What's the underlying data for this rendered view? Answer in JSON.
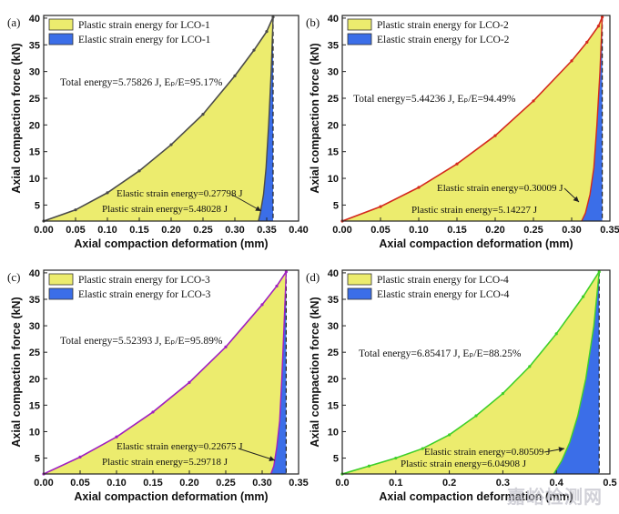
{
  "panels": [
    {
      "tag": "(a)",
      "legend": [
        "Plastic strain energy for LCO-1",
        "Elastic strain energy for LCO-1"
      ],
      "total_note": "Total energy=5.75826 J, Eₚ/E=95.17%",
      "elastic_note": "Elastic strain energy=0.27798 J",
      "plastic_note": "Plastic strain energy=5.48028 J",
      "xlabel": "Axial compaction deformation (mm)",
      "ylabel": "Axial compaction force (kN)",
      "xticks": [
        "0.00",
        "0.05",
        "0.10",
        "0.15",
        "0.20",
        "0.25",
        "0.30",
        "0.35",
        "0.40"
      ],
      "yticks": [
        "5",
        "10",
        "15",
        "20",
        "25",
        "30",
        "35",
        "40"
      ],
      "colors": {
        "line": "#4a4a4a",
        "plastic": "#ecec6e",
        "elastic": "#3b6ee8"
      }
    },
    {
      "tag": "(b)",
      "legend": [
        "Plastic strain energy for LCO-2",
        "Elastic strain energy for LCO-2"
      ],
      "total_note": "Total energy=5.44236 J, Eₚ/E=94.49%",
      "elastic_note": "Elastic strain energy=0.30009 J",
      "plastic_note": "Plastic strain energy=5.14227 J",
      "xlabel": "Axial compaction deformation (mm)",
      "ylabel": "Axial compaction force (kN)",
      "xticks": [
        "0.00",
        "0.05",
        "0.10",
        "0.15",
        "0.20",
        "0.25",
        "0.30",
        "0.35"
      ],
      "yticks": [
        "5",
        "10",
        "15",
        "20",
        "25",
        "30",
        "35",
        "40"
      ],
      "colors": {
        "line": "#d42a1e",
        "plastic": "#ecec6e",
        "elastic": "#3b6ee8"
      }
    },
    {
      "tag": "(c)",
      "legend": [
        "Plastic strain energy for LCO-3",
        "Elastic strain energy for LCO-3"
      ],
      "total_note": "Total energy=5.52393 J, Eₚ/E=95.89%",
      "elastic_note": "Elastic strain energy=0.22675 J",
      "plastic_note": "Plastic strain energy=5.29718 J",
      "xlabel": "Axial compaction deformation (mm)",
      "ylabel": "Axial compaction force (kN)",
      "xticks": [
        "0.00",
        "0.05",
        "0.10",
        "0.15",
        "0.20",
        "0.25",
        "0.30",
        "0.35"
      ],
      "yticks": [
        "5",
        "10",
        "15",
        "20",
        "25",
        "30",
        "35",
        "40"
      ],
      "colors": {
        "line": "#a020c0",
        "plastic": "#ecec6e",
        "elastic": "#3b6ee8"
      }
    },
    {
      "tag": "(d)",
      "legend": [
        "Plastic strain energy for LCO-4",
        "Elastic strain energy for LCO-4"
      ],
      "total_note": "Total energy=6.85417 J, Eₚ/E=88.25%",
      "elastic_note": "Elastic strain energy=0.80509 J",
      "plastic_note": "Plastic strain energy=6.04908 J",
      "xlabel": "Axial compaction deformation (mm)",
      "ylabel": "Axial compaction force (kN)",
      "xticks": [
        "0.0",
        "0.1",
        "0.2",
        "0.3",
        "0.4",
        "0.5"
      ],
      "yticks": [
        "5",
        "10",
        "15",
        "20",
        "25",
        "30",
        "35",
        "40"
      ],
      "colors": {
        "line": "#3ecf2a",
        "plastic": "#ecec6e",
        "elastic": "#3b6ee8"
      }
    }
  ],
  "watermark": "嘉峪检测网",
  "chart_data": [
    {
      "type": "area",
      "xlim": [
        0,
        0.4
      ],
      "ylim": [
        2,
        40.5
      ],
      "grid": false,
      "legend": "top-left",
      "series": [
        {
          "name": "Plastic strain energy for LCO-1",
          "x": [
            0.0,
            0.05,
            0.1,
            0.15,
            0.2,
            0.25,
            0.3,
            0.33,
            0.35,
            0.36
          ],
          "y": [
            2.0,
            4.1,
            7.3,
            11.4,
            16.3,
            22.0,
            29.2,
            34.0,
            37.5,
            40.2
          ]
        },
        {
          "name": "Elastic strain energy for LCO-1",
          "x": [
            0.36,
            0.357,
            0.353,
            0.349,
            0.345,
            0.34,
            0.337
          ],
          "y": [
            40.2,
            30.0,
            20.0,
            12.0,
            7.0,
            3.5,
            2.0
          ]
        }
      ]
    },
    {
      "type": "area",
      "xlim": [
        0,
        0.35
      ],
      "ylim": [
        2,
        40.5
      ],
      "grid": false,
      "legend": "top-left",
      "series": [
        {
          "name": "Plastic strain energy for LCO-2",
          "x": [
            0.0,
            0.05,
            0.1,
            0.15,
            0.2,
            0.25,
            0.3,
            0.32,
            0.335,
            0.34
          ],
          "y": [
            2.0,
            4.7,
            8.3,
            12.7,
            18.0,
            24.5,
            32.0,
            35.5,
            38.5,
            40.2
          ]
        },
        {
          "name": "Elastic strain energy for LCO-2",
          "x": [
            0.34,
            0.337,
            0.333,
            0.329,
            0.324,
            0.318,
            0.313
          ],
          "y": [
            40.2,
            30.0,
            20.0,
            12.0,
            7.0,
            3.5,
            2.0
          ]
        }
      ]
    },
    {
      "type": "area",
      "xlim": [
        0,
        0.35
      ],
      "ylim": [
        2,
        40.5
      ],
      "grid": false,
      "legend": "top-left",
      "series": [
        {
          "name": "Plastic strain energy for LCO-3",
          "x": [
            0.0,
            0.05,
            0.1,
            0.15,
            0.2,
            0.25,
            0.3,
            0.32,
            0.333
          ],
          "y": [
            2.0,
            5.2,
            9.0,
            13.7,
            19.3,
            26.0,
            34.0,
            37.5,
            40.2
          ]
        },
        {
          "name": "Elastic strain energy for LCO-3",
          "x": [
            0.333,
            0.33,
            0.327,
            0.324,
            0.32,
            0.316,
            0.312
          ],
          "y": [
            40.2,
            30.0,
            20.0,
            12.0,
            7.0,
            3.5,
            2.0
          ]
        }
      ]
    },
    {
      "type": "area",
      "xlim": [
        0,
        0.5
      ],
      "ylim": [
        2,
        40.5
      ],
      "grid": false,
      "legend": "top-left",
      "series": [
        {
          "name": "Plastic strain energy for LCO-4",
          "x": [
            0.0,
            0.05,
            0.1,
            0.15,
            0.2,
            0.25,
            0.3,
            0.35,
            0.4,
            0.45,
            0.48
          ],
          "y": [
            2.0,
            3.5,
            5.0,
            6.8,
            9.4,
            13.0,
            17.2,
            22.3,
            28.5,
            35.5,
            40.2
          ]
        },
        {
          "name": "Elastic strain energy for LCO-4",
          "x": [
            0.48,
            0.47,
            0.455,
            0.44,
            0.425,
            0.41,
            0.395
          ],
          "y": [
            40.2,
            30.0,
            20.0,
            13.0,
            8.0,
            4.5,
            2.0
          ]
        }
      ]
    }
  ]
}
